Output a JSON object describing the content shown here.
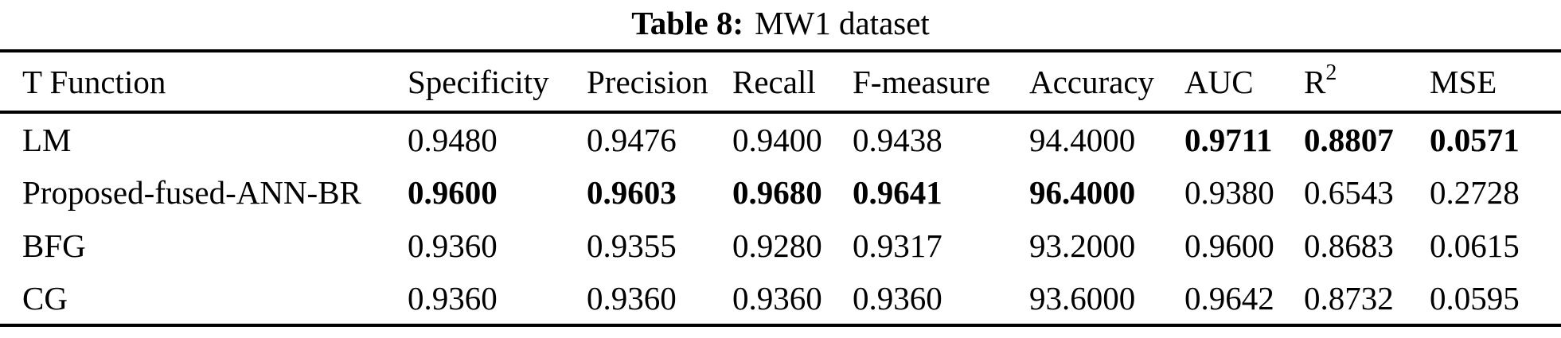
{
  "caption": {
    "label": "Table 8:",
    "text": "MW1 dataset"
  },
  "colors": {
    "text": "#000000",
    "background": "#ffffff",
    "rule": "#000000"
  },
  "table": {
    "headers": [
      "T Function",
      "Specificity",
      "Precision",
      "Recall",
      "F-measure",
      "Accuracy",
      "AUC",
      "R",
      "MSE"
    ],
    "r2_superscript": "2",
    "rows": [
      {
        "name": "LM",
        "values": [
          "0.9480",
          "0.9476",
          "0.9400",
          "0.9438",
          "94.4000",
          "0.9711",
          "0.8807",
          "0.0571"
        ],
        "bold_columns": [
          5,
          6,
          7
        ]
      },
      {
        "name": "Proposed-fused-ANN-BR",
        "values": [
          "0.9600",
          "0.9603",
          "0.9680",
          "0.9641",
          "96.4000",
          "0.9380",
          "0.6543",
          "0.2728"
        ],
        "bold_columns": [
          0,
          1,
          2,
          3,
          4
        ]
      },
      {
        "name": "BFG",
        "values": [
          "0.9360",
          "0.9355",
          "0.9280",
          "0.9317",
          "93.2000",
          "0.9600",
          "0.8683",
          "0.0615"
        ],
        "bold_columns": []
      },
      {
        "name": "CG",
        "values": [
          "0.9360",
          "0.9360",
          "0.9360",
          "0.9360",
          "93.6000",
          "0.9642",
          "0.8732",
          "0.0595"
        ],
        "bold_columns": []
      }
    ]
  },
  "chart_data": {
    "type": "table",
    "title": "Table 8: MW1 dataset",
    "columns": [
      "T Function",
      "Specificity",
      "Precision",
      "Recall",
      "F-measure",
      "Accuracy",
      "AUC",
      "R2",
      "MSE"
    ],
    "rows": [
      [
        "LM",
        0.948,
        0.9476,
        0.94,
        0.9438,
        94.4,
        0.9711,
        0.8807,
        0.0571
      ],
      [
        "Proposed-fused-ANN-BR",
        0.96,
        0.9603,
        0.968,
        0.9641,
        96.4,
        0.938,
        0.6543,
        0.2728
      ],
      [
        "BFG",
        0.936,
        0.9355,
        0.928,
        0.9317,
        93.2,
        0.96,
        0.8683,
        0.0615
      ],
      [
        "CG",
        0.936,
        0.936,
        0.936,
        0.936,
        93.6,
        0.9642,
        0.8732,
        0.0595
      ]
    ]
  }
}
